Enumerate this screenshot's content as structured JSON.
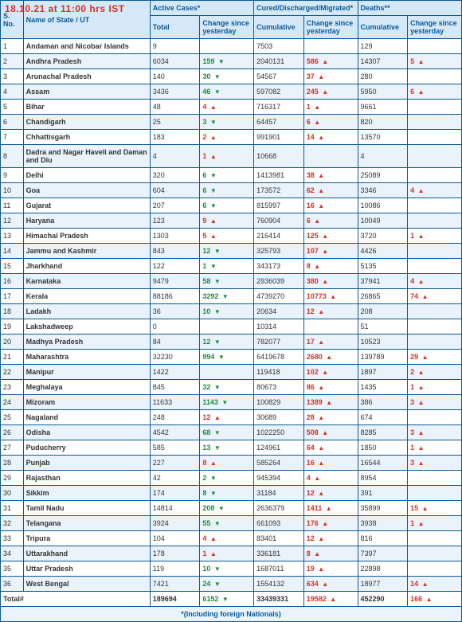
{
  "timestamp": "18.10.21 at 11:00 hrs IST",
  "headers": {
    "sno": "S. No.",
    "state": "Name of State / UT",
    "active_group": "Active Cases*",
    "cured_group": "Cured/Discharged/Migrated*",
    "deaths_group": "Deaths**",
    "total": "Total",
    "change": "Change since yesterday",
    "cumulative": "Cumulative"
  },
  "footer": {
    "total_label": "Total#",
    "note": "*(Including foreign Nationals)"
  },
  "totals": {
    "active": "189694",
    "active_change": "6152",
    "active_dir": "down",
    "cured": "33439331",
    "cured_change": "19582",
    "cured_dir": "up",
    "deaths": "452290",
    "deaths_change": "166",
    "deaths_dir": "up"
  },
  "rows": [
    {
      "n": "1",
      "s": "Andaman and Nicobar Islands",
      "a": "9",
      "ac": "",
      "ad": "",
      "c": "7503",
      "cc": "",
      "cd": "",
      "d": "129",
      "dc": "",
      "dd": ""
    },
    {
      "n": "2",
      "s": "Andhra Pradesh",
      "a": "6034",
      "ac": "159",
      "ad": "down",
      "c": "2040131",
      "cc": "586",
      "cd": "up",
      "d": "14307",
      "dc": "5",
      "dd": "up"
    },
    {
      "n": "3",
      "s": "Arunachal Pradesh",
      "a": "140",
      "ac": "30",
      "ad": "down",
      "c": "54567",
      "cc": "37",
      "cd": "up",
      "d": "280",
      "dc": "",
      "dd": ""
    },
    {
      "n": "4",
      "s": "Assam",
      "a": "3436",
      "ac": "46",
      "ad": "down",
      "c": "597082",
      "cc": "245",
      "cd": "up",
      "d": "5950",
      "dc": "6",
      "dd": "up"
    },
    {
      "n": "5",
      "s": "Bihar",
      "a": "48",
      "ac": "4",
      "ad": "up",
      "c": "716317",
      "cc": "1",
      "cd": "up",
      "d": "9661",
      "dc": "",
      "dd": ""
    },
    {
      "n": "6",
      "s": "Chandigarh",
      "a": "25",
      "ac": "3",
      "ad": "down",
      "c": "64457",
      "cc": "6",
      "cd": "up",
      "d": "820",
      "dc": "",
      "dd": ""
    },
    {
      "n": "7",
      "s": "Chhattisgarh",
      "a": "183",
      "ac": "2",
      "ad": "up",
      "c": "991901",
      "cc": "14",
      "cd": "up",
      "d": "13570",
      "dc": "",
      "dd": ""
    },
    {
      "n": "8",
      "s": "Dadra and Nagar Haveli and Daman and Diu",
      "a": "4",
      "ac": "1",
      "ad": "up",
      "c": "10668",
      "cc": "",
      "cd": "",
      "d": "4",
      "dc": "",
      "dd": ""
    },
    {
      "n": "9",
      "s": "Delhi",
      "a": "320",
      "ac": "6",
      "ad": "down",
      "c": "1413981",
      "cc": "38",
      "cd": "up",
      "d": "25089",
      "dc": "",
      "dd": ""
    },
    {
      "n": "10",
      "s": "Goa",
      "a": "604",
      "ac": "6",
      "ad": "down",
      "c": "173572",
      "cc": "62",
      "cd": "up",
      "d": "3346",
      "dc": "4",
      "dd": "up"
    },
    {
      "n": "11",
      "s": "Gujarat",
      "a": "207",
      "ac": "6",
      "ad": "down",
      "c": "815997",
      "cc": "16",
      "cd": "up",
      "d": "10086",
      "dc": "",
      "dd": ""
    },
    {
      "n": "12",
      "s": "Haryana",
      "a": "123",
      "ac": "9",
      "ad": "up",
      "c": "760904",
      "cc": "6",
      "cd": "up",
      "d": "10049",
      "dc": "",
      "dd": ""
    },
    {
      "n": "13",
      "s": "Himachal Pradesh",
      "a": "1303",
      "ac": "5",
      "ad": "up",
      "c": "216414",
      "cc": "125",
      "cd": "up",
      "d": "3720",
      "dc": "1",
      "dd": "up"
    },
    {
      "n": "14",
      "s": "Jammu and Kashmir",
      "a": "843",
      "ac": "12",
      "ad": "down",
      "c": "325793",
      "cc": "107",
      "cd": "up",
      "d": "4426",
      "dc": "",
      "dd": ""
    },
    {
      "n": "15",
      "s": "Jharkhand",
      "a": "122",
      "ac": "1",
      "ad": "down",
      "c": "343173",
      "cc": "8",
      "cd": "up",
      "d": "5135",
      "dc": "",
      "dd": ""
    },
    {
      "n": "16",
      "s": "Karnataka",
      "a": "9479",
      "ac": "58",
      "ad": "down",
      "c": "2936039",
      "cc": "380",
      "cd": "up",
      "d": "37941",
      "dc": "4",
      "dd": "up"
    },
    {
      "n": "17",
      "s": "Kerala",
      "a": "88186",
      "ac": "3292",
      "ad": "down",
      "c": "4739270",
      "cc": "10773",
      "cd": "up",
      "d": "26865",
      "dc": "74",
      "dd": "up"
    },
    {
      "n": "18",
      "s": "Ladakh",
      "a": "36",
      "ac": "10",
      "ad": "down",
      "c": "20634",
      "cc": "12",
      "cd": "up",
      "d": "208",
      "dc": "",
      "dd": ""
    },
    {
      "n": "19",
      "s": "Lakshadweep",
      "a": "0",
      "ac": "",
      "ad": "",
      "c": "10314",
      "cc": "",
      "cd": "",
      "d": "51",
      "dc": "",
      "dd": ""
    },
    {
      "n": "20",
      "s": "Madhya Pradesh",
      "a": "84",
      "ac": "12",
      "ad": "down",
      "c": "782077",
      "cc": "17",
      "cd": "up",
      "d": "10523",
      "dc": "",
      "dd": ""
    },
    {
      "n": "21",
      "s": "Maharashtra",
      "a": "32230",
      "ac": "994",
      "ad": "down",
      "c": "6419678",
      "cc": "2680",
      "cd": "up",
      "d": "139789",
      "dc": "29",
      "dd": "up"
    },
    {
      "n": "22",
      "s": "Manipur",
      "a": "1422",
      "ac": "",
      "ad": "",
      "c": "119418",
      "cc": "102",
      "cd": "up",
      "d": "1897",
      "dc": "2",
      "dd": "up"
    },
    {
      "n": "23",
      "s": "Meghalaya",
      "a": "845",
      "ac": "32",
      "ad": "down",
      "c": "80673",
      "cc": "86",
      "cd": "up",
      "d": "1435",
      "dc": "1",
      "dd": "up"
    },
    {
      "n": "24",
      "s": "Mizoram",
      "a": "11633",
      "ac": "1143",
      "ad": "down",
      "c": "100829",
      "cc": "1389",
      "cd": "up",
      "d": "386",
      "dc": "3",
      "dd": "up"
    },
    {
      "n": "25",
      "s": "Nagaland",
      "a": "248",
      "ac": "12",
      "ad": "up",
      "c": "30689",
      "cc": "28",
      "cd": "up",
      "d": "674",
      "dc": "",
      "dd": ""
    },
    {
      "n": "26",
      "s": "Odisha",
      "a": "4542",
      "ac": "68",
      "ad": "down",
      "c": "1022250",
      "cc": "508",
      "cd": "up",
      "d": "8285",
      "dc": "3",
      "dd": "up"
    },
    {
      "n": "27",
      "s": "Puducherry",
      "a": "585",
      "ac": "13",
      "ad": "down",
      "c": "124961",
      "cc": "64",
      "cd": "up",
      "d": "1850",
      "dc": "1",
      "dd": "up"
    },
    {
      "n": "28",
      "s": "Punjab",
      "a": "227",
      "ac": "8",
      "ad": "up",
      "c": "585264",
      "cc": "16",
      "cd": "up",
      "d": "16544",
      "dc": "3",
      "dd": "up"
    },
    {
      "n": "29",
      "s": "Rajasthan",
      "a": "42",
      "ac": "2",
      "ad": "down",
      "c": "945394",
      "cc": "4",
      "cd": "up",
      "d": "8954",
      "dc": "",
      "dd": ""
    },
    {
      "n": "30",
      "s": "Sikkim",
      "a": "174",
      "ac": "8",
      "ad": "down",
      "c": "31184",
      "cc": "12",
      "cd": "up",
      "d": "391",
      "dc": "",
      "dd": ""
    },
    {
      "n": "31",
      "s": "Tamil Nadu",
      "a": "14814",
      "ac": "208",
      "ad": "down",
      "c": "2636379",
      "cc": "1411",
      "cd": "up",
      "d": "35899",
      "dc": "15",
      "dd": "up"
    },
    {
      "n": "32",
      "s": "Telangana",
      "a": "3924",
      "ac": "55",
      "ad": "down",
      "c": "661093",
      "cc": "176",
      "cd": "up",
      "d": "3938",
      "dc": "1",
      "dd": "up"
    },
    {
      "n": "33",
      "s": "Tripura",
      "a": "104",
      "ac": "4",
      "ad": "up",
      "c": "83401",
      "cc": "12",
      "cd": "up",
      "d": "816",
      "dc": "",
      "dd": ""
    },
    {
      "n": "34",
      "s": "Uttarakhand",
      "a": "178",
      "ac": "1",
      "ad": "up",
      "c": "336181",
      "cc": "8",
      "cd": "up",
      "d": "7397",
      "dc": "",
      "dd": ""
    },
    {
      "n": "35",
      "s": "Uttar Pradesh",
      "a": "119",
      "ac": "10",
      "ad": "down",
      "c": "1687011",
      "cc": "19",
      "cd": "up",
      "d": "22898",
      "dc": "",
      "dd": ""
    },
    {
      "n": "36",
      "s": "West Bengal",
      "a": "7421",
      "ac": "24",
      "ad": "down",
      "c": "1554132",
      "cc": "634",
      "cd": "up",
      "d": "18977",
      "dc": "14",
      "dd": "up"
    }
  ]
}
